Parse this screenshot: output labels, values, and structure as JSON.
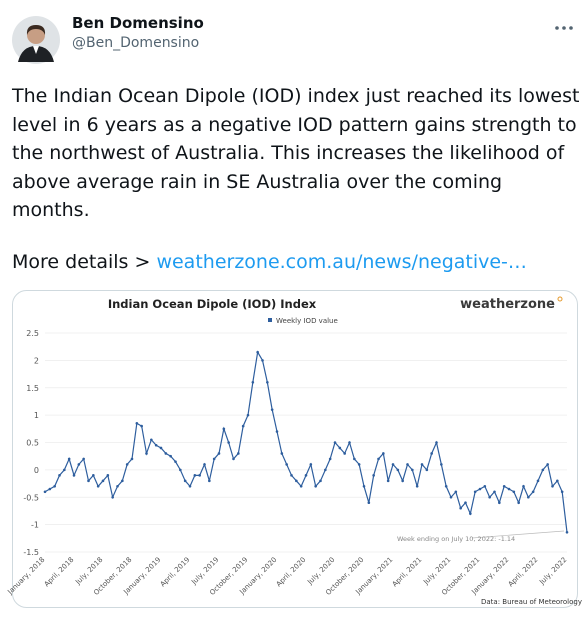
{
  "tweet": {
    "name": "Ben Domensino",
    "handle": "@Ben_Domensino",
    "text": "The Indian Ocean Dipole (IOD) index just reached its lowest level in 6 years as a negative IOD pattern gains strength to the northwest of Australia. This increases the likelihood of above average rain in SE Australia over the coming months.",
    "more_prefix": "More details >",
    "link": "weatherzone.com.au/news/negative-…"
  },
  "chart_data": {
    "type": "line",
    "title": "Indian Ocean Dipole (IOD) Index",
    "brand": "weatherzone",
    "annotation": "Week ending on July 10, 2022: -1.14",
    "source": "Data: Bureau of Meteorology",
    "categories": [
      "January, 2018",
      null,
      null,
      null,
      null,
      null,
      "April, 2018",
      null,
      null,
      null,
      null,
      null,
      "July, 2018",
      null,
      null,
      null,
      null,
      null,
      "October, 2018",
      null,
      null,
      null,
      null,
      null,
      "January, 2019",
      null,
      null,
      null,
      null,
      null,
      "April, 2019",
      null,
      null,
      null,
      null,
      null,
      "July, 2019",
      null,
      null,
      null,
      null,
      null,
      "October, 2019",
      null,
      null,
      null,
      null,
      null,
      "January, 2020",
      null,
      null,
      null,
      null,
      null,
      "April, 2020",
      null,
      null,
      null,
      null,
      null,
      "July, 2020",
      null,
      null,
      null,
      null,
      null,
      "October, 2020",
      null,
      null,
      null,
      null,
      null,
      "January, 2021",
      null,
      null,
      null,
      null,
      null,
      "April, 2021",
      null,
      null,
      null,
      null,
      null,
      "July, 2021",
      null,
      null,
      null,
      null,
      null,
      "October, 2021",
      null,
      null,
      null,
      null,
      null,
      "January, 2022",
      null,
      null,
      null,
      null,
      null,
      "April, 2022",
      null,
      null,
      null,
      null,
      null,
      "July, 2022"
    ],
    "series": [
      {
        "name": "Weekly IOD value",
        "color": "#2e5e9e",
        "values": [
          -0.4,
          -0.35,
          -0.3,
          -0.1,
          0.0,
          0.2,
          -0.1,
          0.1,
          0.2,
          -0.2,
          -0.1,
          -0.3,
          -0.2,
          -0.1,
          -0.5,
          -0.3,
          -0.2,
          0.1,
          0.2,
          0.85,
          0.8,
          0.3,
          0.55,
          0.45,
          0.4,
          0.3,
          0.25,
          0.15,
          0.0,
          -0.2,
          -0.3,
          -0.1,
          -0.1,
          0.1,
          -0.2,
          0.2,
          0.3,
          0.75,
          0.5,
          0.2,
          0.3,
          0.8,
          1.0,
          1.6,
          2.15,
          2.0,
          1.6,
          1.1,
          0.7,
          0.3,
          0.1,
          -0.1,
          -0.2,
          -0.3,
          -0.1,
          0.1,
          -0.3,
          -0.2,
          0.0,
          0.2,
          0.5,
          0.4,
          0.3,
          0.5,
          0.2,
          0.1,
          -0.3,
          -0.6,
          -0.1,
          0.2,
          0.3,
          -0.2,
          0.1,
          0.0,
          -0.2,
          0.1,
          0.0,
          -0.3,
          0.1,
          0.0,
          0.3,
          0.5,
          0.1,
          -0.3,
          -0.5,
          -0.4,
          -0.7,
          -0.6,
          -0.8,
          -0.4,
          -0.35,
          -0.3,
          -0.5,
          -0.4,
          -0.6,
          -0.3,
          -0.35,
          -0.4,
          -0.6,
          -0.3,
          -0.5,
          -0.4,
          -0.2,
          0.0,
          0.1,
          -0.3,
          -0.2,
          -0.4,
          -1.14
        ]
      }
    ],
    "ylim": [
      -1.5,
      2.5
    ],
    "yticks": [
      2.5,
      2,
      1.5,
      1,
      0.5,
      0,
      -0.5,
      -1,
      -1.5
    ],
    "grid": true
  }
}
